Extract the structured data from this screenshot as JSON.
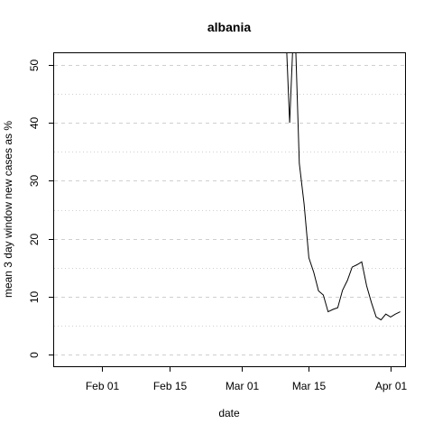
{
  "chart_data": {
    "type": "line",
    "title": "albania",
    "xlabel": "date",
    "ylabel": "mean  3  day window new cases as %",
    "xlim": [
      "2020-01-22",
      "2020-04-04"
    ],
    "ylim": [
      -2,
      52
    ],
    "x_ticks": [
      {
        "date": "2020-02-01",
        "label": "Feb 01"
      },
      {
        "date": "2020-02-15",
        "label": "Feb 15"
      },
      {
        "date": "2020-03-01",
        "label": "Mar 01"
      },
      {
        "date": "2020-03-15",
        "label": "Mar 15"
      },
      {
        "date": "2020-04-01",
        "label": "Apr 01"
      }
    ],
    "y_ticks": [
      0,
      10,
      20,
      30,
      40,
      50
    ],
    "y_minor_grid": [
      5,
      15,
      25,
      35,
      45
    ],
    "grid": true,
    "series": [
      {
        "x": [
          "2020-03-10",
          "2020-03-11",
          "2020-03-12",
          "2020-03-13",
          "2020-03-14",
          "2020-03-15",
          "2020-03-16",
          "2020-03-17",
          "2020-03-18",
          "2020-03-19",
          "2020-03-20",
          "2020-03-21",
          "2020-03-22",
          "2020-03-23",
          "2020-03-24",
          "2020-03-25",
          "2020-03-26",
          "2020-03-27",
          "2020-03-28",
          "2020-03-29",
          "2020-03-30",
          "2020-03-31",
          "2020-04-01",
          "2020-04-02",
          "2020-04-03"
        ],
        "y": [
          60,
          40,
          60,
          33,
          26,
          16.7,
          14.2,
          11,
          10.3,
          7.4,
          7.8,
          8.1,
          11.1,
          12.8,
          15.1,
          15.5,
          16,
          11.9,
          9,
          6.5,
          6,
          7,
          6.5,
          7,
          7.4
        ]
      }
    ]
  }
}
